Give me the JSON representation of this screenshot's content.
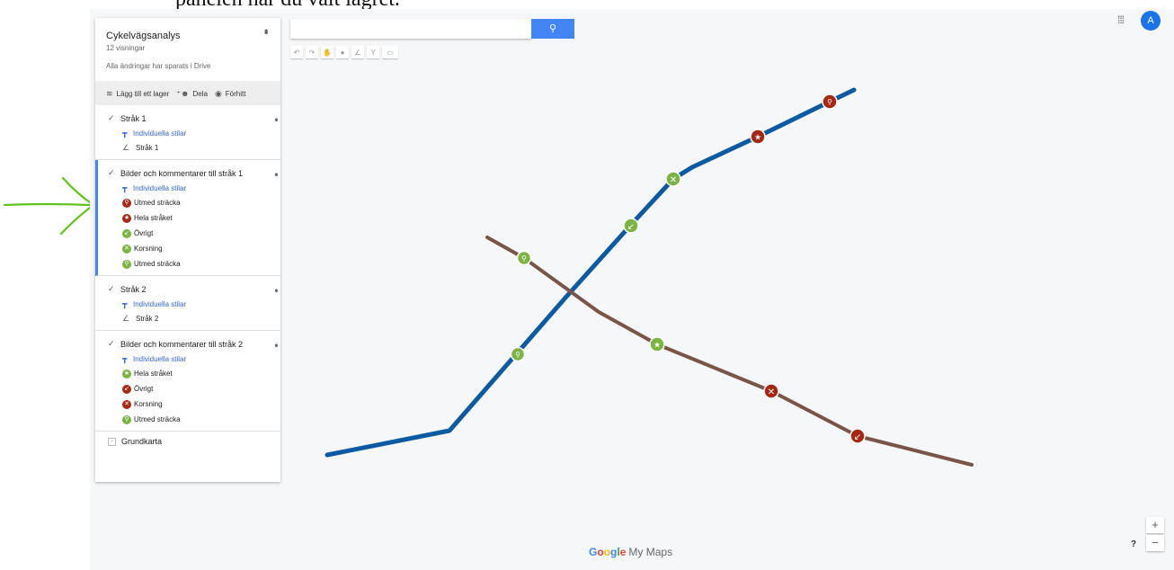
{
  "document": {
    "partial_text": "panelen har du valt lagret."
  },
  "panel": {
    "title": "Cykelvägsanalys",
    "views": "12 visningar",
    "saved": "Alla ändringar har sparats i Drive",
    "toolbar": {
      "add_layer": "Lägg till ett lager",
      "share": "Dela",
      "preview": "Förhitt"
    },
    "layers": [
      {
        "name": "Stråk 1",
        "styles": "Individuella stilar",
        "items": [
          {
            "label": "Stråk 1",
            "icon": "line-icon"
          }
        ]
      },
      {
        "name": "Bilder och kommentarer till stråk 1",
        "styles": "Individuella stilar",
        "active": true,
        "items": [
          {
            "label": "Utmed sträcka",
            "icon": "bike-icon",
            "color": "#a52714"
          },
          {
            "label": "Hela stråket",
            "icon": "star-icon",
            "color": "#a52714"
          },
          {
            "label": "Övrigt",
            "icon": "arrow-icon",
            "color": "#7cb342"
          },
          {
            "label": "Korsning",
            "icon": "cross-icon",
            "color": "#7cb342"
          },
          {
            "label": "Utmed sträcka",
            "icon": "bike-icon",
            "color": "#7cb342"
          }
        ]
      },
      {
        "name": "Stråk 2",
        "styles": "Individuella stilar",
        "items": [
          {
            "label": "Stråk 2",
            "icon": "line-icon"
          }
        ]
      },
      {
        "name": "Bilder och kommentarer till stråk 2",
        "styles": "Individuella stilar",
        "items": [
          {
            "label": "Hela stråket",
            "icon": "star-icon",
            "color": "#7cb342"
          },
          {
            "label": "Övrigt",
            "icon": "arrow-icon",
            "color": "#a52714"
          },
          {
            "label": "Korsning",
            "icon": "cross-icon",
            "color": "#a52714"
          },
          {
            "label": "Utmed sträcka",
            "icon": "bike-icon",
            "color": "#7cb342"
          }
        ]
      }
    ],
    "basemap": "Grundkarta"
  },
  "header": {
    "avatar_letter": "A"
  },
  "map": {
    "colors": {
      "route1": "#0b5aa2",
      "route2": "#795548",
      "red": "#a52714",
      "green": "#7cb342"
    },
    "controls": {
      "zoom_in": "+",
      "zoom_out": "−",
      "help": "?"
    },
    "logo": {
      "google": "Google",
      "product": "My Maps"
    }
  }
}
